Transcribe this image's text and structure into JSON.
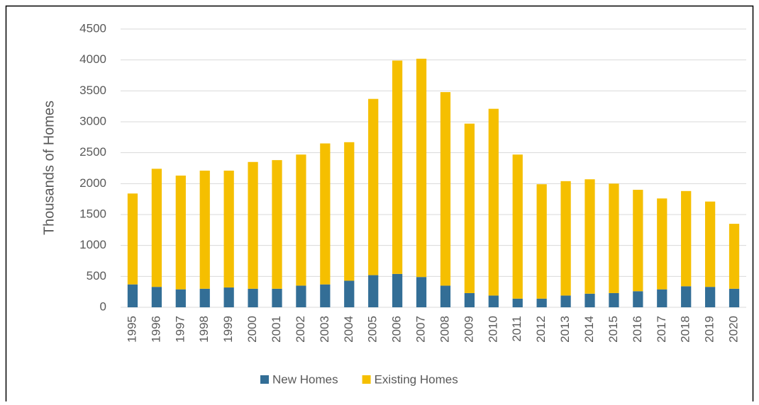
{
  "chart_data": {
    "type": "stacked_bar",
    "y_label": "Thousands of Homes",
    "categories": [
      "1995",
      "1996",
      "1997",
      "1998",
      "1999",
      "2000",
      "2001",
      "2002",
      "2003",
      "2004",
      "2005",
      "2006",
      "2007",
      "2008",
      "2009",
      "2010",
      "2011",
      "2012",
      "2013",
      "2014",
      "2015",
      "2016",
      "2017",
      "2018",
      "2019",
      "2020"
    ],
    "series": [
      {
        "name": "New Homes",
        "color": "#336e96",
        "values": [
          370,
          330,
          290,
          300,
          320,
          300,
          300,
          350,
          370,
          430,
          520,
          540,
          490,
          350,
          230,
          190,
          140,
          140,
          190,
          220,
          230,
          260,
          290,
          340,
          330,
          300
        ]
      },
      {
        "name": "Existing Homes",
        "color": "#f5bf00",
        "values": [
          1470,
          1910,
          1840,
          1910,
          1890,
          2050,
          2080,
          2120,
          2280,
          2240,
          2850,
          3450,
          3530,
          3130,
          2740,
          3020,
          2330,
          1850,
          1850,
          1850,
          1770,
          1640,
          1470,
          1540,
          1380,
          1050
        ]
      }
    ],
    "ylim": [
      0,
      4500
    ],
    "yticks": [
      0,
      500,
      1000,
      1500,
      2000,
      2500,
      3000,
      3500,
      4000,
      4500
    ],
    "grid": true,
    "legend": "bottom"
  }
}
